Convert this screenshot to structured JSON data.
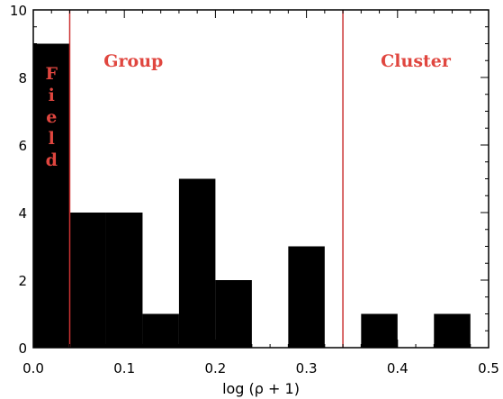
{
  "chart_data": {
    "type": "bar",
    "xlabel": "log (ρ + 1)",
    "ylabel": "",
    "title": "",
    "xlim": [
      0.0,
      0.5
    ],
    "ylim": [
      0,
      10
    ],
    "x_ticks": [
      "0.0",
      "0.1",
      "0.2",
      "0.3",
      "0.4",
      "0.5"
    ],
    "y_ticks": [
      "0",
      "2",
      "4",
      "6",
      "8",
      "10"
    ],
    "bins": [
      {
        "x0": 0.0,
        "x1": 0.04,
        "value": 9
      },
      {
        "x0": 0.04,
        "x1": 0.08,
        "value": 4
      },
      {
        "x0": 0.08,
        "x1": 0.12,
        "value": 4
      },
      {
        "x0": 0.12,
        "x1": 0.16,
        "value": 1
      },
      {
        "x0": 0.16,
        "x1": 0.2,
        "value": 5
      },
      {
        "x0": 0.2,
        "x1": 0.24,
        "value": 2
      },
      {
        "x0": 0.24,
        "x1": 0.28,
        "value": 0
      },
      {
        "x0": 0.28,
        "x1": 0.32,
        "value": 3
      },
      {
        "x0": 0.32,
        "x1": 0.36,
        "value": 0
      },
      {
        "x0": 0.36,
        "x1": 0.4,
        "value": 1
      },
      {
        "x0": 0.4,
        "x1": 0.44,
        "value": 0
      },
      {
        "x0": 0.44,
        "x1": 0.48,
        "value": 1
      }
    ],
    "bar_color": "#000000",
    "divider_color": "#cc3333",
    "label_color": "#e0463f",
    "dividers": [
      0.04,
      0.34
    ],
    "regions": [
      {
        "name": "field",
        "label": "Field",
        "vertical": true
      },
      {
        "name": "group",
        "label": "Group"
      },
      {
        "name": "cluster",
        "label": "Cluster"
      }
    ]
  }
}
